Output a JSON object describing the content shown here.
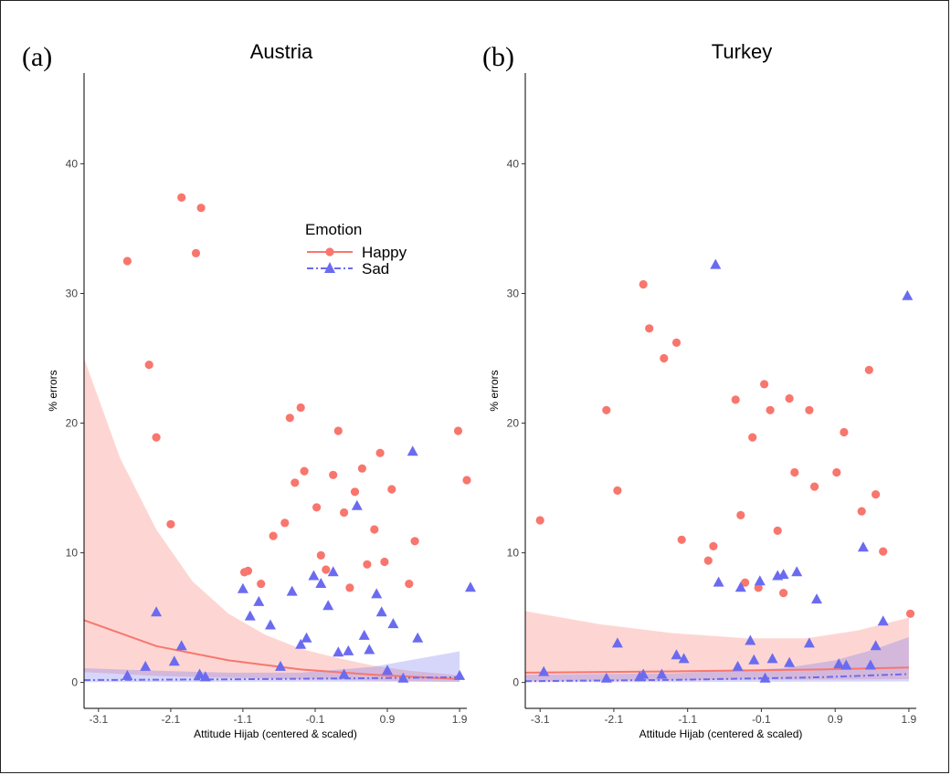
{
  "chart_data": [
    {
      "type": "scatter",
      "panel_label": "(a)",
      "title": "Austria",
      "xlabel": "Attitude Hijab (centered & scaled)",
      "ylabel": "% errors",
      "xlim": [
        -3.3,
        2.0
      ],
      "ylim": [
        -2.0,
        47.0
      ],
      "xticks": [
        -3.1,
        -2.1,
        -1.1,
        -0.1,
        0.9,
        1.9
      ],
      "xtick_labels": [
        "-3.1",
        "-2.1",
        "-1.1",
        "-0.1",
        "0.9",
        "1.9"
      ],
      "yticks": [
        0,
        10,
        20,
        30,
        40
      ],
      "ytick_labels": [
        "0",
        "10",
        "20",
        "30",
        "40"
      ],
      "grid": false,
      "legend": {
        "title": "Emotion",
        "position": "top-right",
        "entries": [
          {
            "name": "Happy",
            "color": "#f8766d",
            "marker": "circle",
            "line": "solid"
          },
          {
            "name": "Sad",
            "color": "#6b6bf0",
            "marker": "triangle",
            "line": "dashdot"
          }
        ]
      },
      "series": [
        {
          "name": "Happy",
          "color": "#f8766d",
          "marker": "circle",
          "points": [
            [
              -2.7,
              32.5
            ],
            [
              -2.4,
              24.5
            ],
            [
              -2.3,
              18.9
            ],
            [
              -2.1,
              12.2
            ],
            [
              -1.95,
              37.4
            ],
            [
              -1.75,
              33.1
            ],
            [
              -1.68,
              36.6
            ],
            [
              -1.08,
              8.5
            ],
            [
              -1.03,
              8.6
            ],
            [
              -0.85,
              7.6
            ],
            [
              -0.68,
              11.3
            ],
            [
              -0.52,
              12.3
            ],
            [
              -0.45,
              20.4
            ],
            [
              -0.38,
              15.4
            ],
            [
              -0.3,
              21.2
            ],
            [
              -0.25,
              16.3
            ],
            [
              -0.08,
              13.5
            ],
            [
              -0.02,
              9.8
            ],
            [
              0.05,
              8.7
            ],
            [
              0.15,
              16.0
            ],
            [
              0.22,
              19.4
            ],
            [
              0.3,
              13.1
            ],
            [
              0.38,
              7.3
            ],
            [
              0.45,
              14.7
            ],
            [
              0.55,
              16.5
            ],
            [
              0.62,
              9.1
            ],
            [
              0.72,
              11.8
            ],
            [
              0.8,
              17.7
            ],
            [
              0.86,
              9.3
            ],
            [
              0.96,
              14.9
            ],
            [
              1.2,
              7.6
            ],
            [
              1.28,
              10.9
            ],
            [
              1.88,
              19.4
            ],
            [
              2.0,
              15.6
            ]
          ],
          "trend": [
            [
              -3.3,
              4.8
            ],
            [
              -2.3,
              2.8
            ],
            [
              -1.3,
              1.7
            ],
            [
              -0.3,
              1.0
            ],
            [
              0.7,
              0.6
            ],
            [
              1.9,
              0.25
            ]
          ],
          "ci_upper": [
            [
              -3.3,
              25.0
            ],
            [
              -2.8,
              17.3
            ],
            [
              -2.3,
              11.8
            ],
            [
              -1.8,
              7.8
            ],
            [
              -1.3,
              5.3
            ],
            [
              -0.8,
              3.7
            ],
            [
              -0.3,
              2.6
            ],
            [
              0.2,
              1.9
            ],
            [
              0.7,
              1.3
            ],
            [
              1.2,
              0.9
            ],
            [
              1.9,
              0.55
            ]
          ],
          "ci_lower": [
            [
              -3.3,
              0.8
            ],
            [
              -2.3,
              0.5
            ],
            [
              -1.3,
              0.35
            ],
            [
              -0.3,
              0.25
            ],
            [
              0.7,
              0.15
            ],
            [
              1.9,
              0.05
            ]
          ]
        },
        {
          "name": "Sad",
          "color": "#6b6bf0",
          "marker": "triangle",
          "points": [
            [
              -2.7,
              0.5
            ],
            [
              -2.45,
              1.2
            ],
            [
              -2.3,
              5.4
            ],
            [
              -2.05,
              1.6
            ],
            [
              -1.95,
              2.8
            ],
            [
              -1.7,
              0.6
            ],
            [
              -1.62,
              0.4
            ],
            [
              -1.1,
              7.2
            ],
            [
              -1.0,
              5.1
            ],
            [
              -0.88,
              6.2
            ],
            [
              -0.72,
              4.4
            ],
            [
              -0.58,
              1.2
            ],
            [
              -0.42,
              7.0
            ],
            [
              -0.3,
              2.9
            ],
            [
              -0.22,
              3.4
            ],
            [
              -0.12,
              8.2
            ],
            [
              -0.02,
              7.6
            ],
            [
              0.08,
              5.9
            ],
            [
              0.15,
              8.5
            ],
            [
              0.22,
              2.3
            ],
            [
              0.3,
              0.6
            ],
            [
              0.36,
              2.4
            ],
            [
              0.48,
              13.6
            ],
            [
              0.58,
              3.6
            ],
            [
              0.65,
              2.5
            ],
            [
              0.75,
              6.8
            ],
            [
              0.82,
              5.4
            ],
            [
              0.9,
              0.9
            ],
            [
              0.98,
              4.5
            ],
            [
              1.12,
              0.3
            ],
            [
              1.25,
              17.8
            ],
            [
              1.32,
              3.4
            ],
            [
              1.9,
              0.5
            ],
            [
              2.05,
              7.3
            ]
          ],
          "trend": [
            [
              -3.3,
              0.18
            ],
            [
              -1.3,
              0.24
            ],
            [
              0.7,
              0.33
            ],
            [
              1.9,
              0.4
            ]
          ],
          "ci_upper": [
            [
              -3.3,
              1.1
            ],
            [
              -2.3,
              0.9
            ],
            [
              -1.3,
              0.75
            ],
            [
              -0.3,
              0.75
            ],
            [
              0.7,
              1.2
            ],
            [
              1.3,
              1.8
            ],
            [
              1.9,
              2.4
            ]
          ],
          "ci_lower": [
            [
              -3.3,
              0.03
            ],
            [
              -0.3,
              0.06
            ],
            [
              1.9,
              0.04
            ]
          ]
        }
      ]
    },
    {
      "type": "scatter",
      "panel_label": "(b)",
      "title": "Turkey",
      "xlabel": "Attitude Hijab (centered & scaled)",
      "ylabel": "% errors",
      "xlim": [
        -3.3,
        2.0
      ],
      "ylim": [
        -2.0,
        47.0
      ],
      "xticks": [
        -3.1,
        -2.1,
        -1.1,
        -0.1,
        0.9,
        1.9
      ],
      "xtick_labels": [
        "-3.1",
        "-2.1",
        "-1.1",
        "-0.1",
        "0.9",
        "1.9"
      ],
      "yticks": [
        0,
        10,
        20,
        30,
        40
      ],
      "ytick_labels": [
        "0",
        "10",
        "20",
        "30",
        "40"
      ],
      "grid": false,
      "series": [
        {
          "name": "Happy",
          "color": "#f8766d",
          "marker": "circle",
          "points": [
            [
              -3.1,
              12.5
            ],
            [
              -2.2,
              21.0
            ],
            [
              -2.05,
              14.8
            ],
            [
              -1.7,
              30.7
            ],
            [
              -1.62,
              27.3
            ],
            [
              -1.42,
              25.0
            ],
            [
              -1.25,
              26.2
            ],
            [
              -1.18,
              11.0
            ],
            [
              -0.82,
              9.4
            ],
            [
              -0.75,
              10.5
            ],
            [
              -0.45,
              21.8
            ],
            [
              -0.38,
              12.9
            ],
            [
              -0.32,
              7.7
            ],
            [
              -0.22,
              18.9
            ],
            [
              -0.14,
              7.3
            ],
            [
              -0.06,
              23.0
            ],
            [
              0.02,
              21.0
            ],
            [
              0.12,
              11.7
            ],
            [
              0.2,
              6.9
            ],
            [
              0.28,
              21.9
            ],
            [
              0.35,
              16.2
            ],
            [
              0.55,
              21.0
            ],
            [
              0.62,
              15.1
            ],
            [
              0.92,
              16.2
            ],
            [
              1.02,
              19.3
            ],
            [
              1.26,
              13.2
            ],
            [
              1.36,
              24.1
            ],
            [
              1.45,
              14.5
            ],
            [
              1.55,
              10.1
            ],
            [
              1.92,
              5.3
            ]
          ],
          "trend": [
            [
              -3.3,
              0.75
            ],
            [
              -1.3,
              0.85
            ],
            [
              0.7,
              1.0
            ],
            [
              1.9,
              1.15
            ]
          ],
          "ci_upper": [
            [
              -3.3,
              5.5
            ],
            [
              -2.3,
              4.5
            ],
            [
              -1.3,
              3.8
            ],
            [
              -0.3,
              3.4
            ],
            [
              0.5,
              3.4
            ],
            [
              1.2,
              4.0
            ],
            [
              1.9,
              5.0
            ]
          ],
          "ci_lower": [
            [
              -3.3,
              0.1
            ],
            [
              -0.3,
              0.2
            ],
            [
              1.9,
              0.25
            ]
          ]
        },
        {
          "name": "Sad",
          "color": "#6b6bf0",
          "marker": "triangle",
          "points": [
            [
              -3.05,
              0.8
            ],
            [
              -2.2,
              0.3
            ],
            [
              -2.05,
              3.0
            ],
            [
              -1.75,
              0.4
            ],
            [
              -1.7,
              0.6
            ],
            [
              -1.45,
              0.6
            ],
            [
              -1.25,
              2.1
            ],
            [
              -1.15,
              1.8
            ],
            [
              -0.72,
              32.2
            ],
            [
              -0.68,
              7.7
            ],
            [
              -0.42,
              1.2
            ],
            [
              -0.38,
              7.3
            ],
            [
              -0.25,
              3.2
            ],
            [
              -0.2,
              1.7
            ],
            [
              -0.12,
              7.8
            ],
            [
              -0.05,
              0.3
            ],
            [
              0.05,
              1.8
            ],
            [
              0.12,
              8.2
            ],
            [
              0.2,
              8.3
            ],
            [
              0.28,
              1.5
            ],
            [
              0.38,
              8.5
            ],
            [
              0.55,
              3.0
            ],
            [
              0.65,
              6.4
            ],
            [
              0.95,
              1.4
            ],
            [
              1.05,
              1.3
            ],
            [
              1.28,
              10.4
            ],
            [
              1.38,
              1.3
            ],
            [
              1.45,
              2.8
            ],
            [
              1.55,
              4.7
            ],
            [
              1.88,
              29.8
            ]
          ],
          "trend": [
            [
              -3.3,
              0.1
            ],
            [
              -1.3,
              0.2
            ],
            [
              0.7,
              0.4
            ],
            [
              1.9,
              0.65
            ]
          ],
          "ci_upper": [
            [
              -3.3,
              0.6
            ],
            [
              -1.3,
              0.7
            ],
            [
              0.2,
              1.1
            ],
            [
              0.9,
              1.7
            ],
            [
              1.4,
              2.5
            ],
            [
              1.9,
              3.5
            ]
          ],
          "ci_lower": [
            [
              -3.3,
              0.01
            ],
            [
              0.2,
              0.05
            ],
            [
              1.9,
              0.08
            ]
          ]
        }
      ]
    }
  ]
}
